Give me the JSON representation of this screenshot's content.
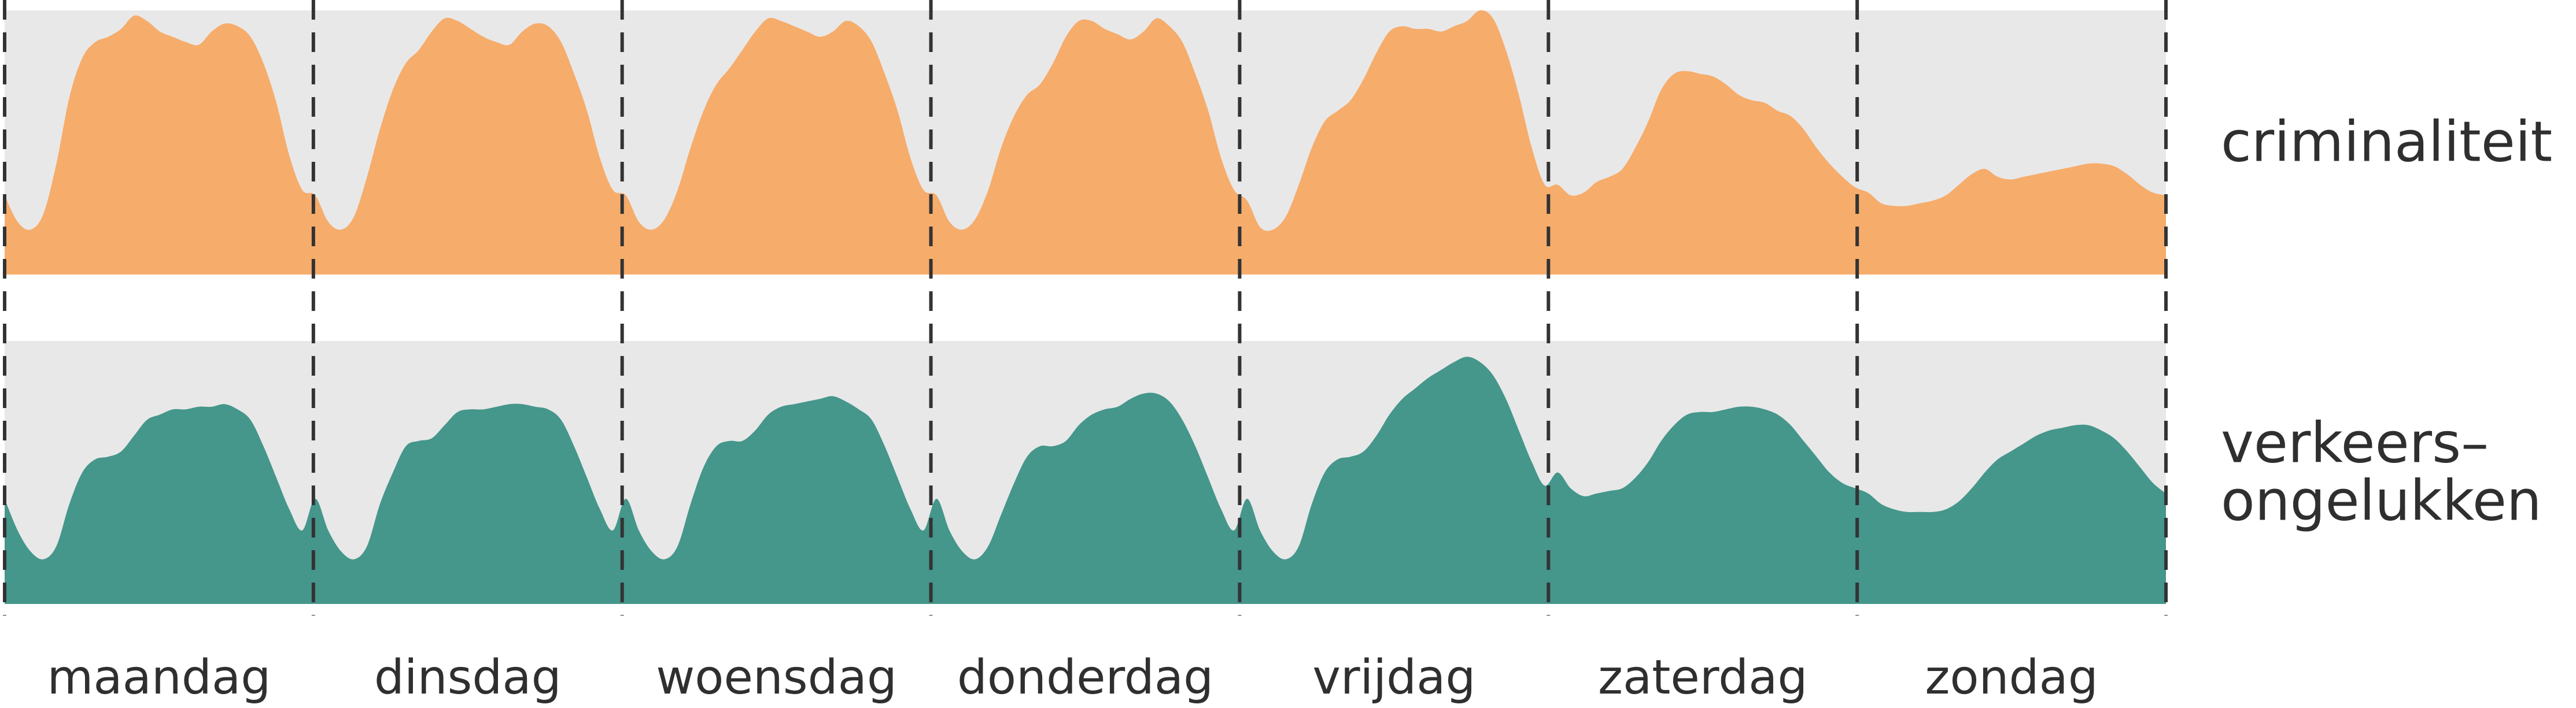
{
  "chart_data": {
    "type": "area",
    "title": "",
    "xlabel": "",
    "ylabel": "",
    "ylim": [
      0,
      100
    ],
    "grid": false,
    "categories": [
      "maandag",
      "dinsdag",
      "woensdag",
      "donderdag",
      "vrijdag",
      "zaterdag",
      "zondag"
    ],
    "hours_per_day": 24,
    "series": [
      {
        "name": "criminaliteit",
        "label_lines": [
          "criminaliteit"
        ],
        "color": "#F6AC6B",
        "values": [
          [
            30,
            20,
            17,
            23,
            42,
            67,
            82,
            88,
            90,
            93,
            98,
            96,
            92,
            90,
            88,
            87,
            92,
            95,
            94,
            90,
            80,
            65,
            45,
            32
          ],
          [
            30,
            20,
            17,
            22,
            37,
            55,
            70,
            80,
            85,
            92,
            97,
            96,
            93,
            90,
            88,
            87,
            92,
            95,
            94,
            88,
            76,
            62,
            44,
            32
          ],
          [
            30,
            20,
            17,
            21,
            32,
            48,
            62,
            72,
            78,
            85,
            92,
            97,
            96,
            94,
            92,
            90,
            92,
            96,
            94,
            88,
            76,
            62,
            44,
            32
          ],
          [
            30,
            20,
            17,
            21,
            32,
            48,
            60,
            68,
            72,
            80,
            90,
            96,
            96,
            93,
            91,
            89,
            92,
            97,
            94,
            88,
            76,
            62,
            44,
            32
          ],
          [
            28,
            18,
            17,
            22,
            34,
            48,
            58,
            62,
            66,
            74,
            84,
            92,
            94,
            93,
            93,
            92,
            94,
            96,
            100,
            97,
            85,
            68,
            48,
            34
          ],
          [
            34,
            30,
            31,
            35,
            37,
            40,
            48,
            58,
            70,
            76,
            77,
            76,
            75,
            72,
            68,
            66,
            65,
            62,
            60,
            55,
            48,
            42,
            37,
            33
          ],
          [
            31,
            27,
            26,
            26,
            27,
            28,
            30,
            34,
            38,
            40,
            37,
            36,
            37,
            38,
            39,
            40,
            41,
            42,
            42,
            41,
            38,
            34,
            31,
            30
          ]
        ]
      },
      {
        "name": "verkeers-ongelukken",
        "label_lines": [
          "verkeers–",
          "ongelukken"
        ],
        "color": "#45968B",
        "values": [
          [
            40,
            28,
            20,
            17,
            22,
            38,
            50,
            55,
            56,
            58,
            64,
            70,
            72,
            74,
            74,
            75,
            75,
            76,
            74,
            70,
            60,
            48,
            36,
            28
          ],
          [
            40,
            28,
            20,
            17,
            22,
            38,
            50,
            60,
            62,
            63,
            68,
            73,
            74,
            74,
            75,
            76,
            76,
            75,
            74,
            70,
            60,
            48,
            36,
            28
          ],
          [
            40,
            28,
            20,
            17,
            22,
            38,
            52,
            60,
            62,
            62,
            66,
            72,
            75,
            76,
            77,
            78,
            79,
            77,
            74,
            70,
            60,
            48,
            36,
            28
          ],
          [
            40,
            28,
            20,
            17,
            22,
            34,
            46,
            56,
            60,
            60,
            62,
            68,
            72,
            74,
            75,
            78,
            80,
            80,
            77,
            70,
            60,
            48,
            36,
            28
          ],
          [
            40,
            28,
            20,
            17,
            22,
            38,
            50,
            55,
            56,
            58,
            64,
            72,
            78,
            82,
            86,
            89,
            92,
            94,
            92,
            87,
            78,
            66,
            54,
            45
          ],
          [
            50,
            44,
            41,
            42,
            43,
            44,
            48,
            54,
            62,
            68,
            72,
            73,
            73,
            74,
            75,
            75,
            74,
            72,
            68,
            62,
            56,
            50,
            46,
            44
          ],
          [
            42,
            38,
            36,
            35,
            35,
            35,
            36,
            39,
            44,
            50,
            55,
            58,
            61,
            64,
            66,
            67,
            68,
            68,
            66,
            63,
            58,
            52,
            46,
            42
          ]
        ]
      }
    ]
  }
}
